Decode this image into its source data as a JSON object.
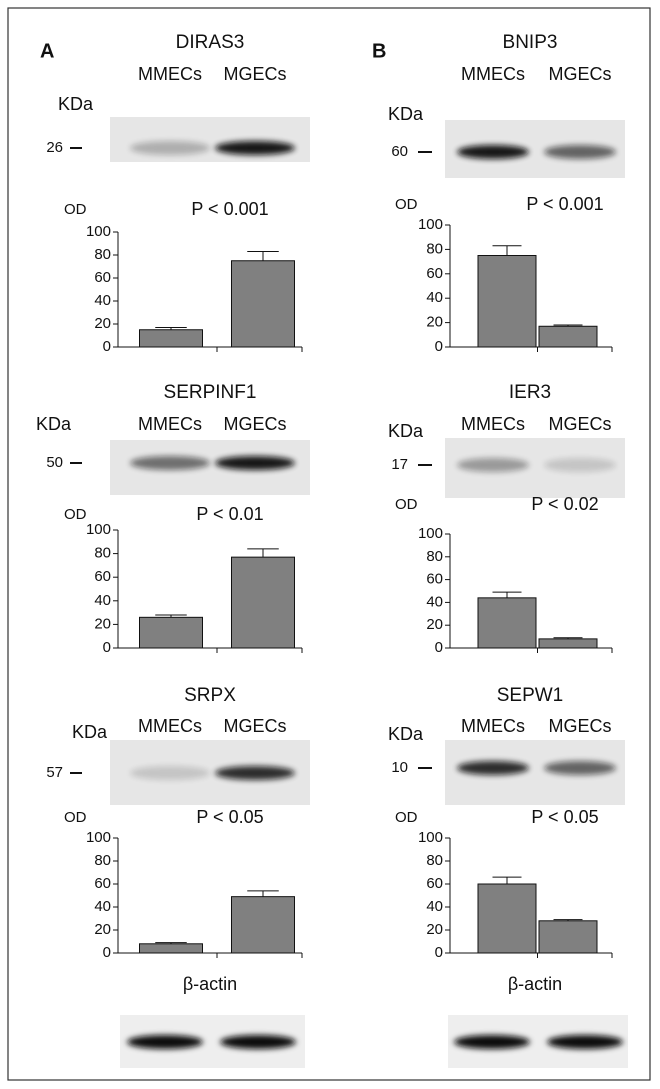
{
  "panels": [
    {
      "label": "A",
      "loading_control": "β-actin"
    },
    {
      "label": "B",
      "loading_control": "β-actin"
    }
  ],
  "chart_data": [
    {
      "type": "bar",
      "title": "DIRAS3",
      "blot_unit": "KDa",
      "blot_marker": "26",
      "categories": [
        "MMECs",
        "MGECs"
      ],
      "annotation": "P < 0.001",
      "ylabel": "OD",
      "values": [
        15,
        75
      ],
      "errors": [
        2,
        8
      ],
      "color": "#808080",
      "ylim": [
        0,
        100
      ],
      "yticks": [
        0,
        20,
        40,
        60,
        80,
        100
      ]
    },
    {
      "type": "bar",
      "title": "SERPINF1",
      "blot_unit": "KDa",
      "blot_marker": "50",
      "categories": [
        "MMECs",
        "MGECs"
      ],
      "annotation": "P < 0.01",
      "ylabel": "OD",
      "values": [
        26,
        77
      ],
      "errors": [
        2,
        7
      ],
      "color": "#808080",
      "ylim": [
        0,
        100
      ],
      "yticks": [
        0,
        20,
        40,
        60,
        80,
        100
      ]
    },
    {
      "type": "bar",
      "title": "SRPX",
      "blot_unit": "KDa",
      "blot_marker": "57",
      "categories": [
        "MMECs",
        "MGECs"
      ],
      "annotation": "P < 0.05",
      "ylabel": "OD",
      "values": [
        8,
        49
      ],
      "errors": [
        1,
        5
      ],
      "color": "#808080",
      "ylim": [
        0,
        100
      ],
      "yticks": [
        0,
        20,
        40,
        60,
        80,
        100
      ]
    },
    {
      "type": "bar",
      "title": "BNIP3",
      "blot_unit": "KDa",
      "blot_marker": "60",
      "categories": [
        "MMECs",
        "MGECs"
      ],
      "annotation": "P < 0.001",
      "ylabel": "OD",
      "values": [
        75,
        17
      ],
      "errors": [
        8,
        1
      ],
      "color": "#808080",
      "ylim": [
        0,
        100
      ],
      "yticks": [
        0,
        20,
        40,
        60,
        80,
        100
      ]
    },
    {
      "type": "bar",
      "title": "IER3",
      "blot_unit": "KDa",
      "blot_marker": "17",
      "categories": [
        "MMECs",
        "MGECs"
      ],
      "annotation": "P < 0.02",
      "ylabel": "OD",
      "values": [
        44,
        8
      ],
      "errors": [
        5,
        1
      ],
      "color": "#808080",
      "ylim": [
        0,
        100
      ],
      "yticks": [
        0,
        20,
        40,
        60,
        80,
        100
      ]
    },
    {
      "type": "bar",
      "title": "SEPW1",
      "blot_unit": "KDa",
      "blot_marker": "10",
      "categories": [
        "MMECs",
        "MGECs"
      ],
      "annotation": "P < 0.05",
      "ylabel": "OD",
      "values": [
        60,
        28
      ],
      "errors": [
        6,
        1
      ],
      "color": "#808080",
      "ylim": [
        0,
        100
      ],
      "yticks": [
        0,
        20,
        40,
        60,
        80,
        100
      ]
    }
  ]
}
